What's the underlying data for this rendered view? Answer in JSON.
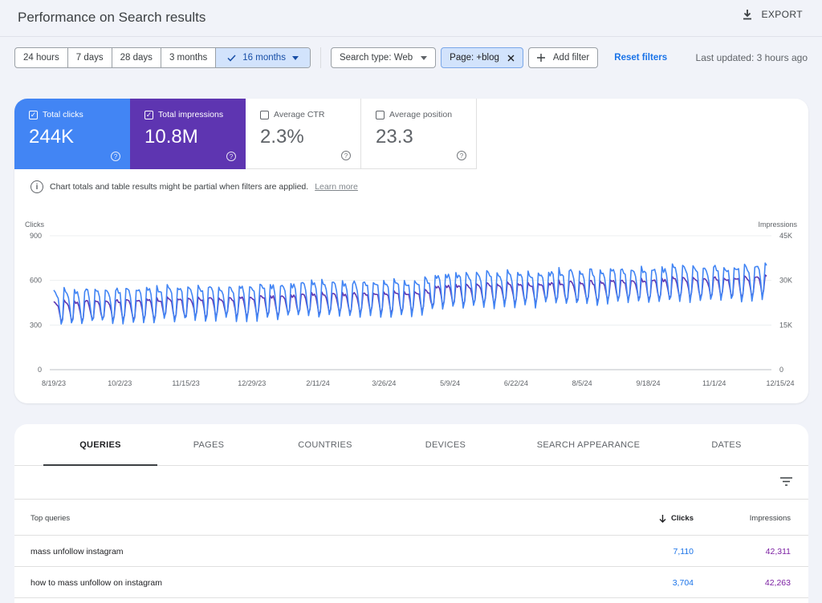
{
  "header": {
    "title": "Performance on Search results",
    "export_label": "EXPORT"
  },
  "filters": {
    "ranges": [
      "24 hours",
      "7 days",
      "28 days",
      "3 months"
    ],
    "active_range": "16 months",
    "search_type": "Search type: Web",
    "page_filter": "Page: +blog",
    "add_filter": "Add filter",
    "reset": "Reset filters",
    "last_updated": "Last updated: 3 hours ago"
  },
  "metrics": {
    "clicks": {
      "label": "Total clicks",
      "value": "244K",
      "checked": "✓"
    },
    "impressions": {
      "label": "Total impressions",
      "value": "10.8M",
      "checked": "✓"
    },
    "ctr": {
      "label": "Average CTR",
      "value": "2.3%"
    },
    "position": {
      "label": "Average position",
      "value": "23.3"
    }
  },
  "notice": {
    "text": "Chart totals and table results might be partial when filters are applied.",
    "link": "Learn more"
  },
  "colors": {
    "clicks": "#4285f4",
    "impressions": "#5e35b1"
  },
  "chart_data": {
    "type": "line",
    "left_axis_label": "Clicks",
    "right_axis_label": "Impressions",
    "left_ticks": [
      "900",
      "600",
      "300",
      "0"
    ],
    "right_ticks": [
      "45K",
      "30K",
      "15K",
      "0"
    ],
    "ylim_left": [
      0,
      900
    ],
    "ylim_right": [
      0,
      45000
    ],
    "x_ticks": [
      "8/19/23",
      "10/2/23",
      "11/15/23",
      "12/29/23",
      "2/11/24",
      "3/26/24",
      "5/9/24",
      "6/22/24",
      "8/5/24",
      "9/18/24",
      "11/1/24",
      "12/15/24"
    ],
    "series": [
      {
        "name": "Clicks",
        "axis": "left",
        "color": "#4285f4",
        "base_start": 420,
        "base_end": 560,
        "amplitude": 115
      },
      {
        "name": "Impressions",
        "axis": "right",
        "color": "#5e35b1",
        "base_start": 19500,
        "base_end": 26500,
        "amplitude": 3400
      }
    ]
  },
  "tabs": [
    "QUERIES",
    "PAGES",
    "COUNTRIES",
    "DEVICES",
    "SEARCH APPEARANCE",
    "DATES"
  ],
  "table": {
    "headers": {
      "query": "Top queries",
      "clicks": "Clicks",
      "impressions": "Impressions"
    },
    "rows": [
      {
        "query": "mass unfollow instagram",
        "clicks": "7,110",
        "impressions": "42,311"
      },
      {
        "query": "how to mass unfollow on instagram",
        "clicks": "3,704",
        "impressions": "42,263"
      }
    ]
  }
}
